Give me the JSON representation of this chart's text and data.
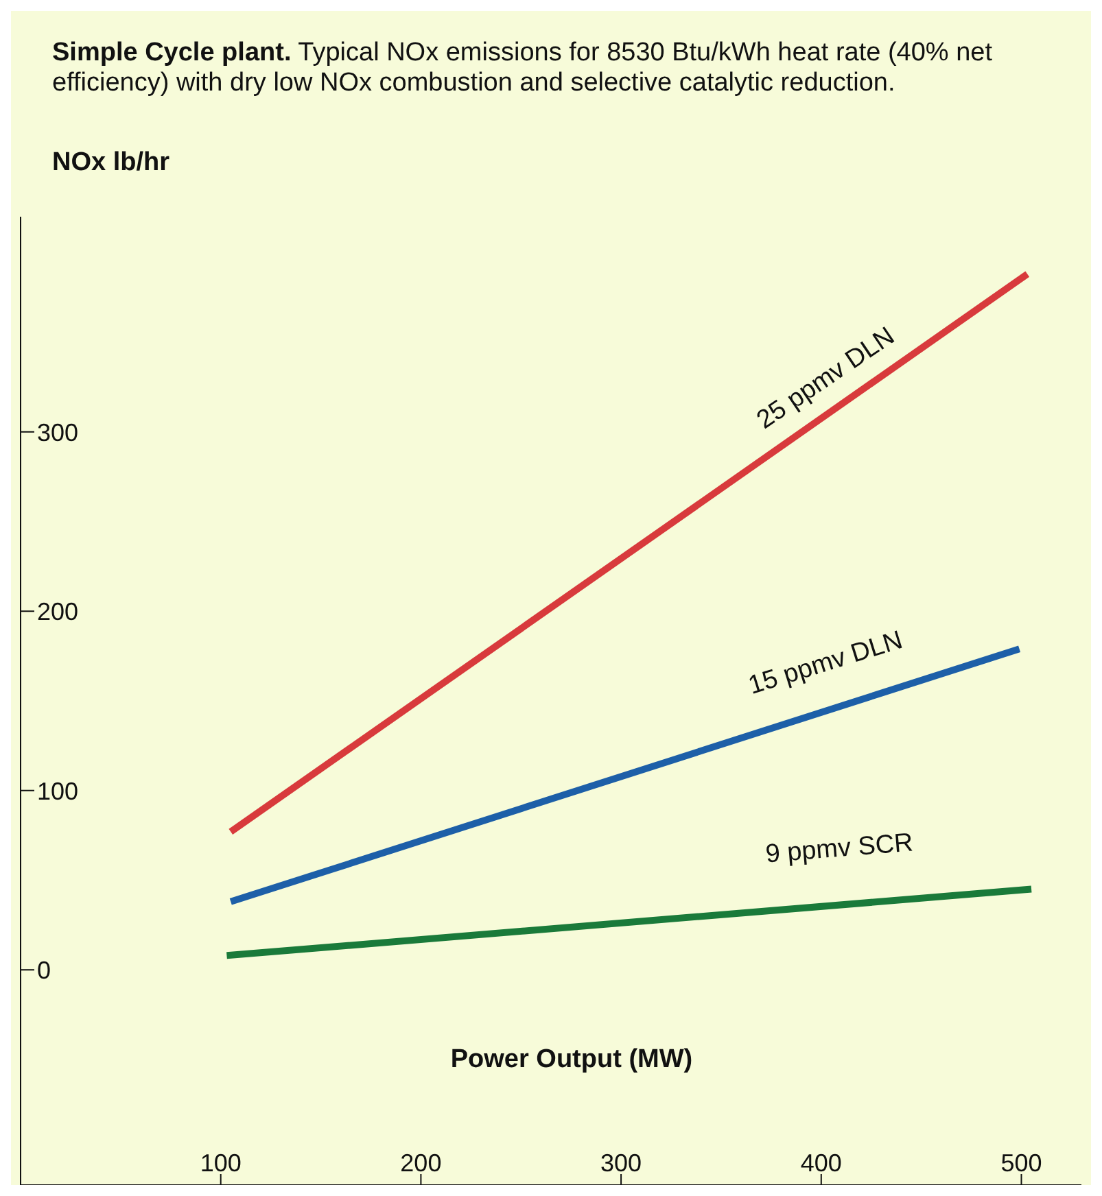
{
  "chart_data": {
    "type": "line",
    "title": "Simple Cycle plant.",
    "subtitle": "Typical NOx emissions for 8530 Btu/kWh heat rate (40% net efficiency) with dry low NOx combustion and selective catalytic reduction.",
    "xlabel": "Power Output (MW)",
    "ylabel": "NOx lb/hr",
    "xlim": [
      0,
      530
    ],
    "xticks": [
      100,
      200,
      300,
      400,
      500
    ],
    "ylim": [
      -120,
      420
    ],
    "yticks": [
      0,
      100,
      200,
      300
    ],
    "series": [
      {
        "color": "#d83a3c",
        "x": [
          105,
          503
        ],
        "values": [
          77,
          388
        ]
      },
      {
        "color": "#1d5fa8",
        "x": [
          105,
          499
        ],
        "values": [
          38,
          179
        ]
      },
      {
        "color": "#1a7a3a",
        "x": [
          103,
          505
        ],
        "values": [
          8,
          45
        ]
      }
    ],
    "annotations": [
      "25 ppmv DLN",
      "15 ppmv DLN",
      "9 ppmv SCR"
    ]
  }
}
